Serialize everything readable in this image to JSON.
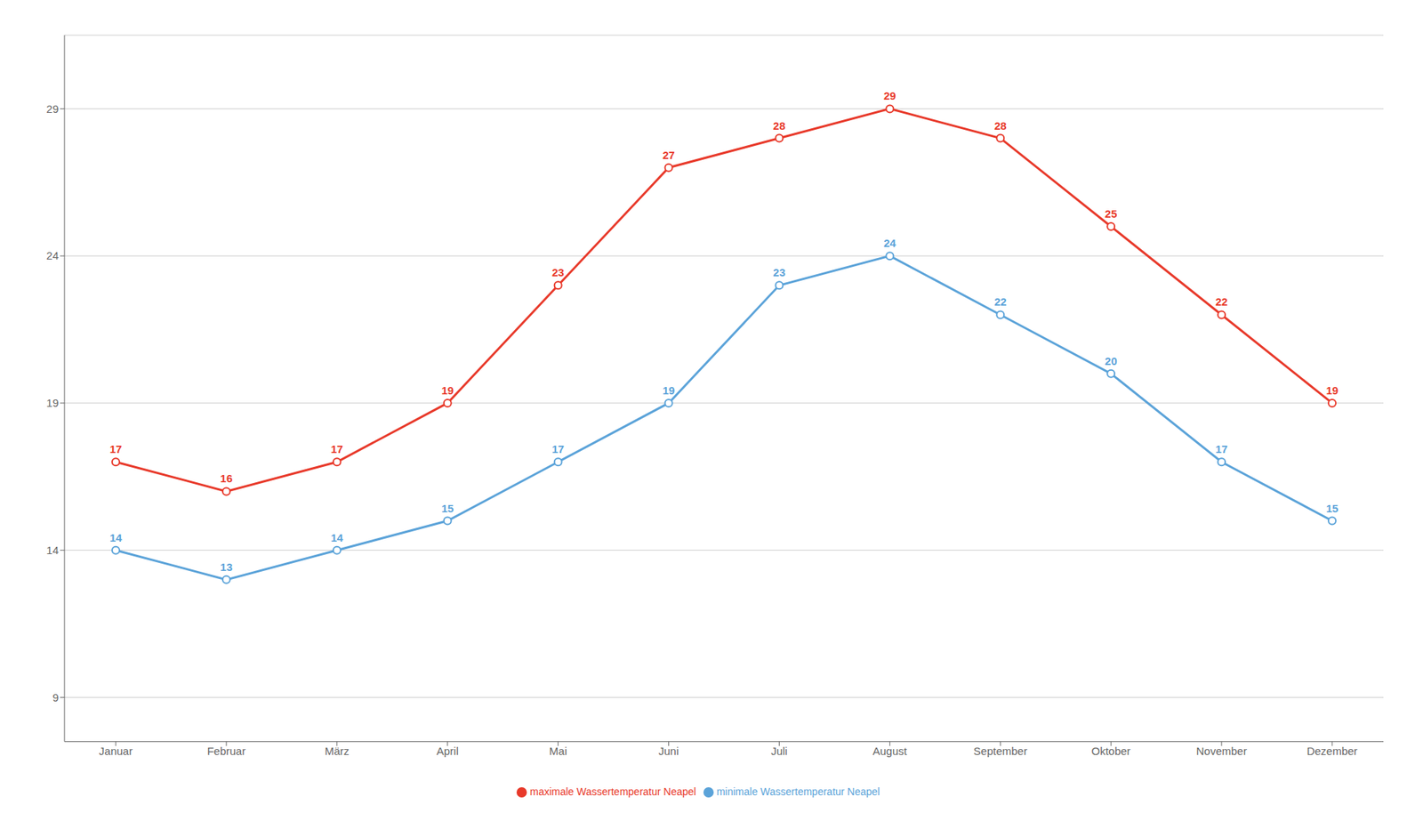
{
  "chart_data": {
    "type": "line",
    "categories": [
      "Januar",
      "Februar",
      "März",
      "April",
      "Mai",
      "Juni",
      "Juli",
      "August",
      "September",
      "Oktober",
      "November",
      "Dezember"
    ],
    "series": [
      {
        "name": "minimale Wassertemperatur Neapel",
        "color": "#5BA3D9",
        "values": [
          14,
          13,
          14,
          15,
          17,
          19,
          23,
          24,
          22,
          20,
          17,
          15
        ]
      },
      {
        "name": "maximale Wassertemperatur Neapel",
        "color": "#E8392A",
        "values": [
          17,
          16,
          17,
          19,
          23,
          27,
          28,
          29,
          28,
          25,
          22,
          19
        ]
      }
    ],
    "ylim": [
      7.5,
      31.5
    ],
    "yticks": [
      9,
      14,
      19,
      24,
      29
    ],
    "grid": true,
    "legend": "bottom",
    "data_labels": true,
    "marker": "circle",
    "line_style": "solid"
  }
}
